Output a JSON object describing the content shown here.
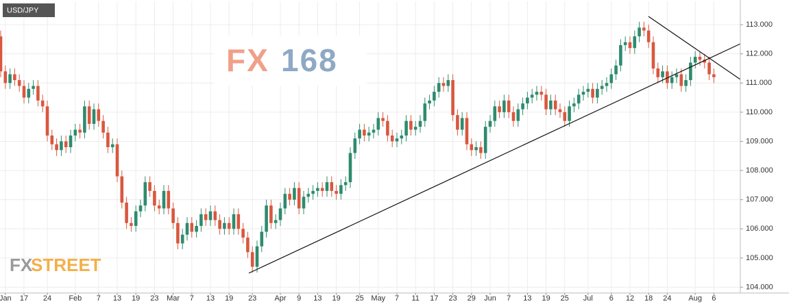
{
  "chart_data": {
    "type": "candlestick",
    "title": "USD/JPY",
    "categories": [
      null,
      "Jan",
      null,
      null,
      null,
      "17",
      null,
      null,
      null,
      null,
      "24",
      null,
      null,
      null,
      null,
      null,
      "Feb",
      null,
      null,
      null,
      null,
      "7",
      null,
      null,
      null,
      "13",
      null,
      null,
      null,
      "19",
      null,
      null,
      null,
      "23",
      null,
      null,
      null,
      "Mar",
      null,
      null,
      null,
      "7",
      null,
      null,
      null,
      "13",
      null,
      null,
      null,
      "19",
      null,
      null,
      null,
      null,
      "23",
      null,
      null,
      null,
      null,
      null,
      "Apr",
      null,
      null,
      null,
      "9",
      null,
      null,
      null,
      "13",
      null,
      null,
      null,
      "19",
      null,
      null,
      null,
      null,
      "25",
      null,
      null,
      null,
      "May",
      null,
      null,
      null,
      "7",
      null,
      null,
      null,
      "11",
      null,
      null,
      null,
      "17",
      null,
      null,
      null,
      "23",
      null,
      null,
      null,
      "29",
      null,
      null,
      null,
      "Jun",
      null,
      null,
      null,
      "7",
      null,
      null,
      null,
      "13",
      null,
      null,
      null,
      "19",
      null,
      null,
      null,
      "25",
      null,
      null,
      null,
      null,
      "Jul",
      null,
      null,
      null,
      null,
      "6",
      null,
      null,
      null,
      "12",
      null,
      null,
      null,
      "18",
      null,
      null,
      null,
      "24",
      null,
      null,
      null,
      null,
      null,
      "Aug",
      null,
      null,
      null,
      "6"
    ],
    "open": [
      112.6,
      111.4,
      111.0,
      111.3,
      111.1,
      110.9,
      110.5,
      110.8,
      110.9,
      110.4,
      110.2,
      109.2,
      108.9,
      108.7,
      109.0,
      108.8,
      109.2,
      109.4,
      109.3,
      110.2,
      109.6,
      110.1,
      109.7,
      109.3,
      108.8,
      108.9,
      107.8,
      106.9,
      106.2,
      106.1,
      106.6,
      106.8,
      107.6,
      107.3,
      106.8,
      106.7,
      107.3,
      106.7,
      106.2,
      105.5,
      105.8,
      106.2,
      105.9,
      106.1,
      106.5,
      106.3,
      106.6,
      106.3,
      106.0,
      106.2,
      106.0,
      106.5,
      106.0,
      105.7,
      105.2,
      104.7,
      105.4,
      105.9,
      106.8,
      106.2,
      106.3,
      106.7,
      107.2,
      107.0,
      107.4,
      106.7,
      107.1,
      107.2,
      107.3,
      107.4,
      107.3,
      107.6,
      107.3,
      107.2,
      107.5,
      107.6,
      108.6,
      109.1,
      109.4,
      109.2,
      109.3,
      109.4,
      109.8,
      109.7,
      109.2,
      109.0,
      109.1,
      109.2,
      109.7,
      109.4,
      109.5,
      109.7,
      110.3,
      110.4,
      110.7,
      111.0,
      110.9,
      111.1,
      109.9,
      109.4,
      109.8,
      108.9,
      108.7,
      108.8,
      108.6,
      109.5,
      109.7,
      110.2,
      110.0,
      110.4,
      110.0,
      109.7,
      110.1,
      110.3,
      110.5,
      110.6,
      110.7,
      110.6,
      110.1,
      110.4,
      110.1,
      110.0,
      109.7,
      110.2,
      110.3,
      110.6,
      110.7,
      110.8,
      110.5,
      110.8,
      110.9,
      111.0,
      111.3,
      111.6,
      112.3,
      112.4,
      112.2,
      112.6,
      112.9,
      112.8,
      112.4,
      111.5,
      111.2,
      111.4,
      111.0,
      111.2,
      111.3,
      110.9,
      111.1,
      111.7,
      111.9,
      111.8,
      111.7,
      111.3
    ],
    "high": [
      112.8,
      111.6,
      111.5,
      111.5,
      111.3,
      111.1,
      111.0,
      111.1,
      111.1,
      110.6,
      110.4,
      109.4,
      109.1,
      109.2,
      109.2,
      109.4,
      109.6,
      109.6,
      110.4,
      110.4,
      110.3,
      110.3,
      109.9,
      109.5,
      109.1,
      109.1,
      108.0,
      107.1,
      106.4,
      106.8,
      107.0,
      107.8,
      107.8,
      107.5,
      107.0,
      107.5,
      107.5,
      106.9,
      106.4,
      106.0,
      106.4,
      106.4,
      106.3,
      106.7,
      106.7,
      106.8,
      106.8,
      106.5,
      106.4,
      106.4,
      106.7,
      106.7,
      106.2,
      105.9,
      105.4,
      105.6,
      106.1,
      107.0,
      107.0,
      106.5,
      106.9,
      107.4,
      107.4,
      107.6,
      107.6,
      107.3,
      107.4,
      107.5,
      107.6,
      107.6,
      107.8,
      107.8,
      107.5,
      107.7,
      107.8,
      108.8,
      109.3,
      109.6,
      109.6,
      109.5,
      109.6,
      110.0,
      110.0,
      109.9,
      109.4,
      109.3,
      109.4,
      109.9,
      109.9,
      109.7,
      109.9,
      110.5,
      110.6,
      110.9,
      111.2,
      111.2,
      111.3,
      111.3,
      110.1,
      110.0,
      110.0,
      109.1,
      109.0,
      109.0,
      109.7,
      109.9,
      110.4,
      110.4,
      110.6,
      110.6,
      110.2,
      110.3,
      110.5,
      110.7,
      110.8,
      110.9,
      110.9,
      110.8,
      110.6,
      110.6,
      110.3,
      110.2,
      110.4,
      110.5,
      110.8,
      110.9,
      111.0,
      111.0,
      111.0,
      111.1,
      111.2,
      111.5,
      111.8,
      112.5,
      112.6,
      112.6,
      112.8,
      113.1,
      113.1,
      113.0,
      112.6,
      111.7,
      111.6,
      111.6,
      111.4,
      111.5,
      111.5,
      111.3,
      111.9,
      112.1,
      112.1,
      112.0,
      111.9,
      111.5
    ],
    "low": [
      111.2,
      110.8,
      110.8,
      110.9,
      110.7,
      110.3,
      110.3,
      110.6,
      110.2,
      110.0,
      109.0,
      108.7,
      108.5,
      108.5,
      108.6,
      108.6,
      109.0,
      109.1,
      109.1,
      109.4,
      109.4,
      109.5,
      109.1,
      108.6,
      108.6,
      107.6,
      106.7,
      106.0,
      105.9,
      105.9,
      106.4,
      106.6,
      107.1,
      106.6,
      106.5,
      106.5,
      106.5,
      106.0,
      105.3,
      105.3,
      105.6,
      105.7,
      105.7,
      105.9,
      106.1,
      106.1,
      106.1,
      105.8,
      105.8,
      105.8,
      105.8,
      105.8,
      105.5,
      105.0,
      104.5,
      104.5,
      105.2,
      105.7,
      106.0,
      106.0,
      106.1,
      106.5,
      106.8,
      106.8,
      106.5,
      106.5,
      106.9,
      107.0,
      107.1,
      107.1,
      107.1,
      107.1,
      107.0,
      107.0,
      107.3,
      107.4,
      108.4,
      108.9,
      109.0,
      109.0,
      109.1,
      109.2,
      109.5,
      109.0,
      108.8,
      108.8,
      108.9,
      109.0,
      109.2,
      109.2,
      109.3,
      109.5,
      110.1,
      110.2,
      110.5,
      110.7,
      110.7,
      109.7,
      109.2,
      109.2,
      108.7,
      108.5,
      108.5,
      108.4,
      108.4,
      109.3,
      109.5,
      109.8,
      109.8,
      109.8,
      109.5,
      109.5,
      109.9,
      110.1,
      110.3,
      110.4,
      110.4,
      109.9,
      109.9,
      109.9,
      109.8,
      109.5,
      109.5,
      110.0,
      110.1,
      110.4,
      110.5,
      110.3,
      110.3,
      110.6,
      110.7,
      110.8,
      111.1,
      111.4,
      112.1,
      112.0,
      112.0,
      112.4,
      112.6,
      112.2,
      111.3,
      111.0,
      111.0,
      110.8,
      110.8,
      111.0,
      110.7,
      110.7,
      110.9,
      111.5,
      111.6,
      111.5,
      111.1,
      111.0
    ],
    "close": [
      111.4,
      111.0,
      111.3,
      111.1,
      110.9,
      110.5,
      110.8,
      110.9,
      110.4,
      110.2,
      109.2,
      108.9,
      108.7,
      109.0,
      108.8,
      109.2,
      109.4,
      109.3,
      110.2,
      109.6,
      110.1,
      109.7,
      109.3,
      108.8,
      108.9,
      107.8,
      106.9,
      106.2,
      106.1,
      106.6,
      106.8,
      107.6,
      107.3,
      106.8,
      106.7,
      107.3,
      106.7,
      106.2,
      105.5,
      105.8,
      106.2,
      105.9,
      106.1,
      106.5,
      106.3,
      106.6,
      106.3,
      106.0,
      106.2,
      106.0,
      106.5,
      106.0,
      105.7,
      105.2,
      104.7,
      105.4,
      105.9,
      106.8,
      106.2,
      106.3,
      106.7,
      107.2,
      107.0,
      107.4,
      106.7,
      107.1,
      107.2,
      107.3,
      107.4,
      107.3,
      107.6,
      107.3,
      107.2,
      107.5,
      107.6,
      108.6,
      109.1,
      109.4,
      109.2,
      109.3,
      109.4,
      109.8,
      109.7,
      109.2,
      109.0,
      109.1,
      109.2,
      109.7,
      109.4,
      109.5,
      109.7,
      110.3,
      110.4,
      110.7,
      111.0,
      110.9,
      111.1,
      109.9,
      109.4,
      109.8,
      108.9,
      108.7,
      108.8,
      108.6,
      109.5,
      109.7,
      110.2,
      110.0,
      110.4,
      110.0,
      109.7,
      110.1,
      110.3,
      110.5,
      110.6,
      110.7,
      110.6,
      110.1,
      110.4,
      110.1,
      110.0,
      109.7,
      110.2,
      110.3,
      110.6,
      110.7,
      110.8,
      110.5,
      110.8,
      110.9,
      111.0,
      111.3,
      111.6,
      112.3,
      112.4,
      112.2,
      112.6,
      112.9,
      112.8,
      112.4,
      111.5,
      111.2,
      111.4,
      111.0,
      111.2,
      111.3,
      110.9,
      111.1,
      111.7,
      111.9,
      111.8,
      111.7,
      111.3,
      111.2
    ],
    "up_color": "#2e8b6e",
    "down_color": "#d9573f",
    "ylim": [
      103.8,
      113.8
    ],
    "yticks": [
      {
        "value": 104,
        "label": "104.000"
      },
      {
        "value": 105,
        "label": "105.000"
      },
      {
        "value": 106,
        "label": "106.000"
      },
      {
        "value": 107,
        "label": "107.000"
      },
      {
        "value": 108,
        "label": "108.000"
      },
      {
        "value": 109,
        "label": "109.000"
      },
      {
        "value": 110,
        "label": "110.000"
      },
      {
        "value": 111,
        "label": "111.000"
      },
      {
        "value": 112,
        "label": "112.000"
      },
      {
        "value": 113,
        "label": "113.000"
      }
    ],
    "grid": true
  },
  "watermarks": {
    "fx168": [
      "FX",
      "168"
    ],
    "fxstreet": [
      "FX",
      "STREET"
    ]
  }
}
